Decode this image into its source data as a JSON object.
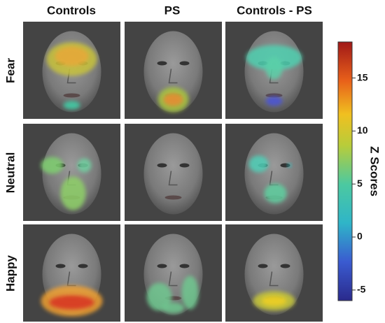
{
  "columns": [
    "Controls",
    "PS",
    "Controls - PS"
  ],
  "rows": [
    "Fear",
    "Neutral",
    "Happy"
  ],
  "colorbar": {
    "label": "Z Scores",
    "lim": [
      -6,
      18.4
    ],
    "ticks": [
      -5,
      0,
      5,
      10,
      15
    ]
  }
}
